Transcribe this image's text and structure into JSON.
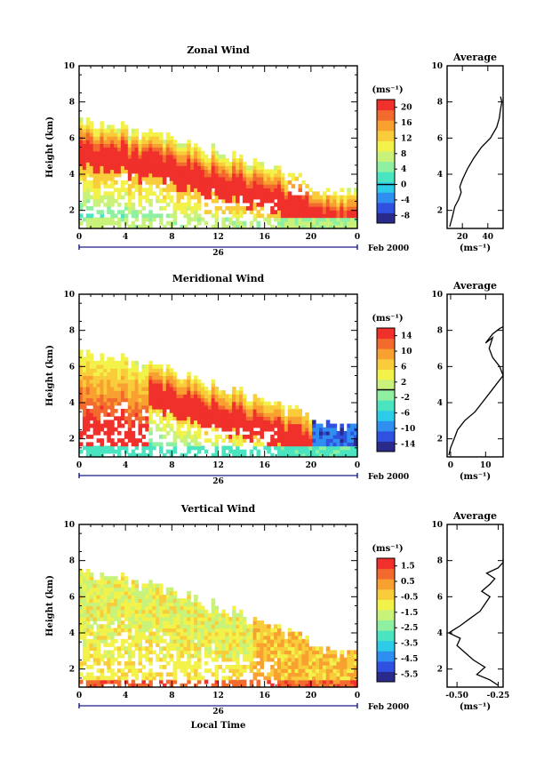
{
  "chart_data": [
    {
      "type": "heatmap",
      "title": "Zonal Wind",
      "ylabel": "Height (km)",
      "ylim": [
        1,
        10
      ],
      "xlim": [
        0,
        24
      ],
      "x_ticks": [
        "0",
        "4",
        "8",
        "12",
        "16",
        "20",
        "0"
      ],
      "y_ticks": [
        "2",
        "4",
        "6",
        "8",
        "10"
      ],
      "date_label": "26",
      "date_suffix": "Feb 2000",
      "colorbar": {
        "unit": "(ms⁻¹)",
        "ticks": [
          "20",
          "16",
          "12",
          "8",
          "4",
          "0",
          "-4",
          "-8"
        ],
        "range": [
          -10,
          22
        ],
        "zero_line": 0
      },
      "description_fields": {
        "core_value": 22,
        "top_height_start": 7.0,
        "top_height_end": 2.8
      },
      "profile": {
        "title": "Average",
        "xlabel": "(ms⁻¹)",
        "x_ticks": [
          "20",
          "40"
        ],
        "xlim": [
          8,
          52
        ],
        "y_ticks": [
          "2",
          "4",
          "6",
          "8",
          "10"
        ],
        "points": [
          [
            10,
            1.1
          ],
          [
            12,
            1.6
          ],
          [
            14,
            2.2
          ],
          [
            17,
            2.6
          ],
          [
            19,
            3.0
          ],
          [
            18,
            3.3
          ],
          [
            20,
            3.7
          ],
          [
            24,
            4.3
          ],
          [
            29,
            4.9
          ],
          [
            35,
            5.5
          ],
          [
            42,
            6.0
          ],
          [
            47,
            6.6
          ],
          [
            49,
            7.1
          ],
          [
            50,
            7.6
          ],
          [
            51,
            8.0
          ],
          [
            50,
            8.3
          ]
        ]
      }
    },
    {
      "type": "heatmap",
      "title": "Meridional Wind",
      "ylabel": "Height (km)",
      "ylim": [
        1,
        10
      ],
      "xlim": [
        0,
        24
      ],
      "x_ticks": [
        "0",
        "4",
        "8",
        "12",
        "16",
        "20",
        "0"
      ],
      "y_ticks": [
        "2",
        "4",
        "6",
        "8",
        "10"
      ],
      "date_label": "26",
      "date_suffix": "Feb 2000",
      "colorbar": {
        "unit": "(ms⁻¹)",
        "ticks": [
          "14",
          "10",
          "6",
          "2",
          "-2",
          "-6",
          "-10",
          "-14"
        ],
        "range": [
          -16,
          16
        ],
        "zero_line": 0
      },
      "description_fields": {
        "core_value": 16,
        "top_height_start": 6.8,
        "top_height_end": 2.4
      },
      "profile": {
        "title": "Average",
        "xlabel": "(ms⁻¹)",
        "x_ticks": [
          "0",
          "10"
        ],
        "xlim": [
          -1,
          15
        ],
        "y_ticks": [
          "2",
          "4",
          "6",
          "8",
          "10"
        ],
        "points": [
          [
            -0.5,
            1.1
          ],
          [
            0,
            1.5
          ],
          [
            1,
            2.0
          ],
          [
            2,
            2.5
          ],
          [
            4,
            3.0
          ],
          [
            7,
            3.5
          ],
          [
            9,
            4.0
          ],
          [
            11,
            4.5
          ],
          [
            13,
            5.0
          ],
          [
            15,
            5.5
          ],
          [
            14,
            6.0
          ],
          [
            12,
            6.5
          ],
          [
            11,
            7.0
          ],
          [
            12,
            7.6
          ],
          [
            10,
            7.3
          ],
          [
            12,
            7.8
          ],
          [
            14,
            8.1
          ],
          [
            15,
            8.2
          ]
        ]
      }
    },
    {
      "type": "heatmap",
      "title": "Vertical Wind",
      "ylabel": "Height (km)",
      "ylim": [
        1,
        10
      ],
      "xlim": [
        0,
        24
      ],
      "x_ticks": [
        "0",
        "4",
        "8",
        "12",
        "16",
        "20",
        "0"
      ],
      "y_ticks": [
        "2",
        "4",
        "6",
        "8",
        "10"
      ],
      "date_label": "26",
      "date_suffix": "Feb 2000",
      "xlabel": "Local Time",
      "colorbar": {
        "unit": "(ms⁻¹)",
        "ticks": [
          "1.5",
          "0.5",
          "-0.5",
          "-1.5",
          "-2.5",
          "-3.5",
          "-4.5",
          "-5.5"
        ],
        "range": [
          -6,
          2
        ]
      },
      "description_fields": {
        "top_height_start": 7.5,
        "top_height_end": 2.6
      },
      "profile": {
        "title": "Average",
        "xlabel": "(ms⁻¹)",
        "x_ticks": [
          "-0.50",
          "-0.25"
        ],
        "xlim": [
          -0.56,
          -0.22
        ],
        "y_ticks": [
          "2",
          "4",
          "6",
          "8",
          "10"
        ],
        "points": [
          [
            -0.25,
            1.1
          ],
          [
            -0.3,
            1.4
          ],
          [
            -0.38,
            1.7
          ],
          [
            -0.33,
            2.1
          ],
          [
            -0.4,
            2.5
          ],
          [
            -0.45,
            2.9
          ],
          [
            -0.5,
            3.3
          ],
          [
            -0.48,
            3.7
          ],
          [
            -0.55,
            4.0
          ],
          [
            -0.48,
            4.4
          ],
          [
            -0.42,
            4.8
          ],
          [
            -0.36,
            5.2
          ],
          [
            -0.33,
            5.6
          ],
          [
            -0.3,
            6.0
          ],
          [
            -0.35,
            6.3
          ],
          [
            -0.3,
            6.7
          ],
          [
            -0.27,
            7.0
          ],
          [
            -0.32,
            7.3
          ],
          [
            -0.25,
            7.6
          ],
          [
            -0.22,
            7.9
          ],
          [
            -0.22,
            8.1
          ]
        ]
      }
    }
  ]
}
